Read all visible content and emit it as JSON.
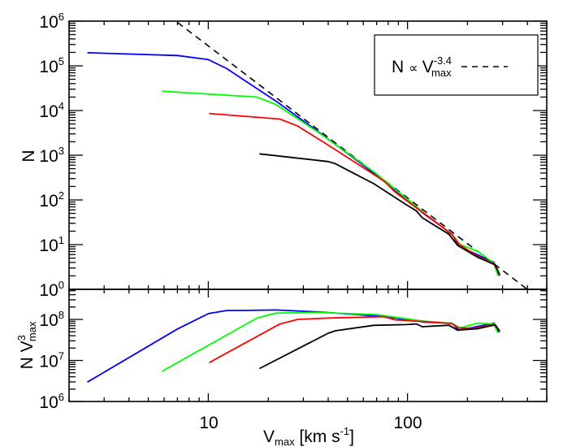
{
  "chart_data": [
    {
      "type": "line",
      "panel": "top",
      "xlabel": "V_max [km s^-1]",
      "ylabel": "N",
      "xscale": "log",
      "yscale": "log",
      "xlim": [
        2,
        500
      ],
      "ylim": [
        1,
        1000000
      ],
      "x_tick_labels": [
        "10",
        "100"
      ],
      "y_tick_labels": [
        {
          "base": "10",
          "exp": "0"
        },
        {
          "base": "10",
          "exp": "1"
        },
        {
          "base": "10",
          "exp": "2"
        },
        {
          "base": "10",
          "exp": "3"
        },
        {
          "base": "10",
          "exp": "4"
        },
        {
          "base": "10",
          "exp": "5"
        },
        {
          "base": "10",
          "exp": "6"
        }
      ],
      "grid": false,
      "legend": {
        "position": "top-right",
        "text_main": "N",
        "text_propto": "∝",
        "text_v": "V",
        "text_sub": "max",
        "text_sup": "-3.4",
        "line_style": "dashed",
        "color": "#000000"
      },
      "power_law": {
        "slope": -3.4,
        "anchor_v": 6.87,
        "anchor_n": 1000000,
        "color": "#000000",
        "style": "dashed"
      },
      "series": [
        {
          "color": "#0000ff",
          "x": [
            2.47,
            7,
            10,
            12.4,
            15,
            21.8,
            34.9,
            55.8,
            81.3,
            121.9,
            167.5,
            180.6,
            222,
            271,
            289
          ],
          "y": [
            196000,
            170000,
            138000,
            86500,
            49000,
            16400,
            3600,
            755,
            210,
            47.5,
            17.2,
            9.27,
            6.07,
            4.07,
            2.03
          ]
        },
        {
          "color": "#00ff00",
          "x": [
            5.85,
            17.5,
            21.8,
            34.9,
            69.3,
            121.9,
            167.5,
            184,
            225,
            271,
            284
          ],
          "y": [
            27100,
            20000,
            13700,
            3480,
            394,
            49.7,
            17,
            10.0,
            7.1,
            3.9,
            2.05
          ]
        },
        {
          "color": "#ff0000",
          "x": [
            10.1,
            22.9,
            28.1,
            40.8,
            76.2,
            86.9,
            146.9,
            167.5,
            180.6,
            222,
            271,
            292
          ],
          "y": [
            8590,
            6450,
            4500,
            1590,
            264,
            148,
            26.3,
            16.6,
            10.4,
            5.64,
            3.77,
            2.03
          ]
        },
        {
          "color": "#000000",
          "x": [
            18.07,
            40,
            43.4,
            67.5,
            98.2,
            110.9,
            118.5,
            161.4,
            178,
            225,
            276,
            289
          ],
          "y": [
            1075,
            720,
            646,
            233,
            79,
            56.8,
            39.9,
            17.1,
            9.7,
            5.2,
            3.52,
            2.2
          ]
        }
      ]
    },
    {
      "type": "line",
      "panel": "bottom",
      "ylabel_main": "N V",
      "ylabel_sup": "3",
      "ylabel_sub": "max",
      "xlabel_main": "V",
      "xlabel_sub": "max",
      "xlabel_unit": " [km s",
      "xlabel_unit_sup": "-1",
      "xlabel_close": "]",
      "xscale": "log",
      "yscale": "log",
      "xlim": [
        2,
        500
      ],
      "ylim": [
        1000000,
        540000000
      ],
      "y_tick_labels": [
        {
          "base": "10",
          "exp": "6"
        },
        {
          "base": "10",
          "exp": "7"
        },
        {
          "base": "10",
          "exp": "8"
        }
      ],
      "y_quantity": "N * V_max^3 of the top-panel series"
    }
  ]
}
